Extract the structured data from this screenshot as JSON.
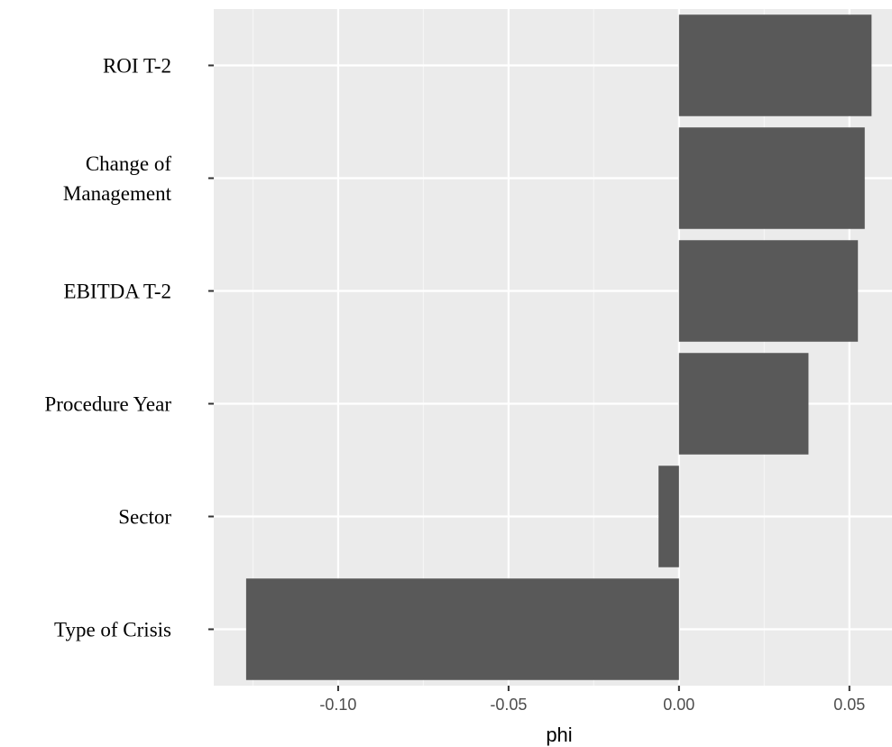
{
  "chart_data": {
    "type": "bar",
    "orientation": "horizontal",
    "categories": [
      "ROI T-2",
      "Change of Management",
      "EBITDA T-2",
      "Procedure Year",
      "Sector",
      "Type of Crisis"
    ],
    "values": [
      0.0565,
      0.0545,
      0.0525,
      0.038,
      -0.006,
      -0.127
    ],
    "xlabel": "phi",
    "ylabel": "",
    "xlim": [
      -0.1365,
      0.0625
    ],
    "x_ticks": [
      -0.1,
      -0.05,
      0.0,
      0.05
    ],
    "x_tick_labels": [
      "-0.10",
      "-0.05",
      "0.00",
      "0.05"
    ],
    "grid": true,
    "legend": "none",
    "colors": {
      "bar": "#595959",
      "panel_background": "#ebebeb",
      "grid_major": "#ffffff",
      "grid_minor": "#f5f5f5"
    }
  }
}
